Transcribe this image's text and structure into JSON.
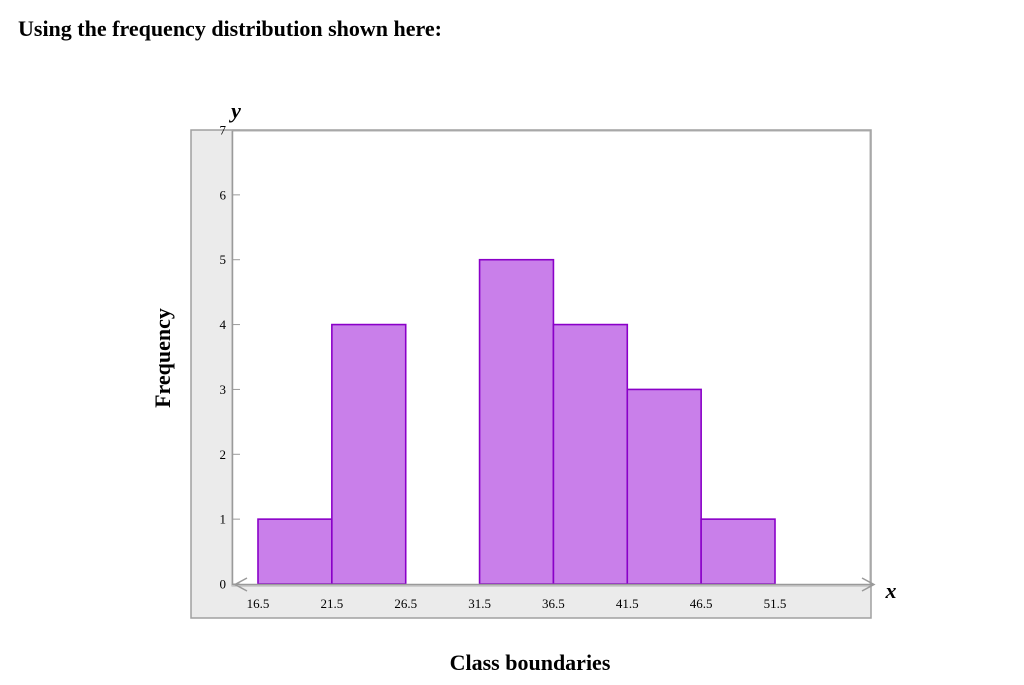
{
  "prompt": "Using the frequency distribution shown here:",
  "chart_data": {
    "type": "bar",
    "xlabel": "Class boundaries",
    "ylabel": "Frequency",
    "x_axis_symbol": "x",
    "y_axis_symbol": "y",
    "x_ticks": [
      "16.5",
      "21.5",
      "26.5",
      "31.5",
      "36.5",
      "41.5",
      "46.5",
      "51.5"
    ],
    "y_ticks": [
      "0",
      "1",
      "2",
      "3",
      "4",
      "5",
      "6",
      "7"
    ],
    "xlim": [
      16.5,
      51.5
    ],
    "ylim": [
      0,
      7
    ],
    "grid": false,
    "bins": [
      {
        "lower": 16.5,
        "upper": 21.5,
        "frequency": 1
      },
      {
        "lower": 21.5,
        "upper": 26.5,
        "frequency": 4
      },
      {
        "lower": 26.5,
        "upper": 31.5,
        "frequency": 0
      },
      {
        "lower": 31.5,
        "upper": 36.5,
        "frequency": 5
      },
      {
        "lower": 36.5,
        "upper": 41.5,
        "frequency": 4
      },
      {
        "lower": 41.5,
        "upper": 46.5,
        "frequency": 3
      },
      {
        "lower": 46.5,
        "upper": 51.5,
        "frequency": 1
      }
    ],
    "colors": {
      "bar_fill": "#c97fea",
      "bar_stroke": "#8a00c8",
      "panel": "#ebebeb",
      "frame": "#a0a0a0"
    }
  }
}
